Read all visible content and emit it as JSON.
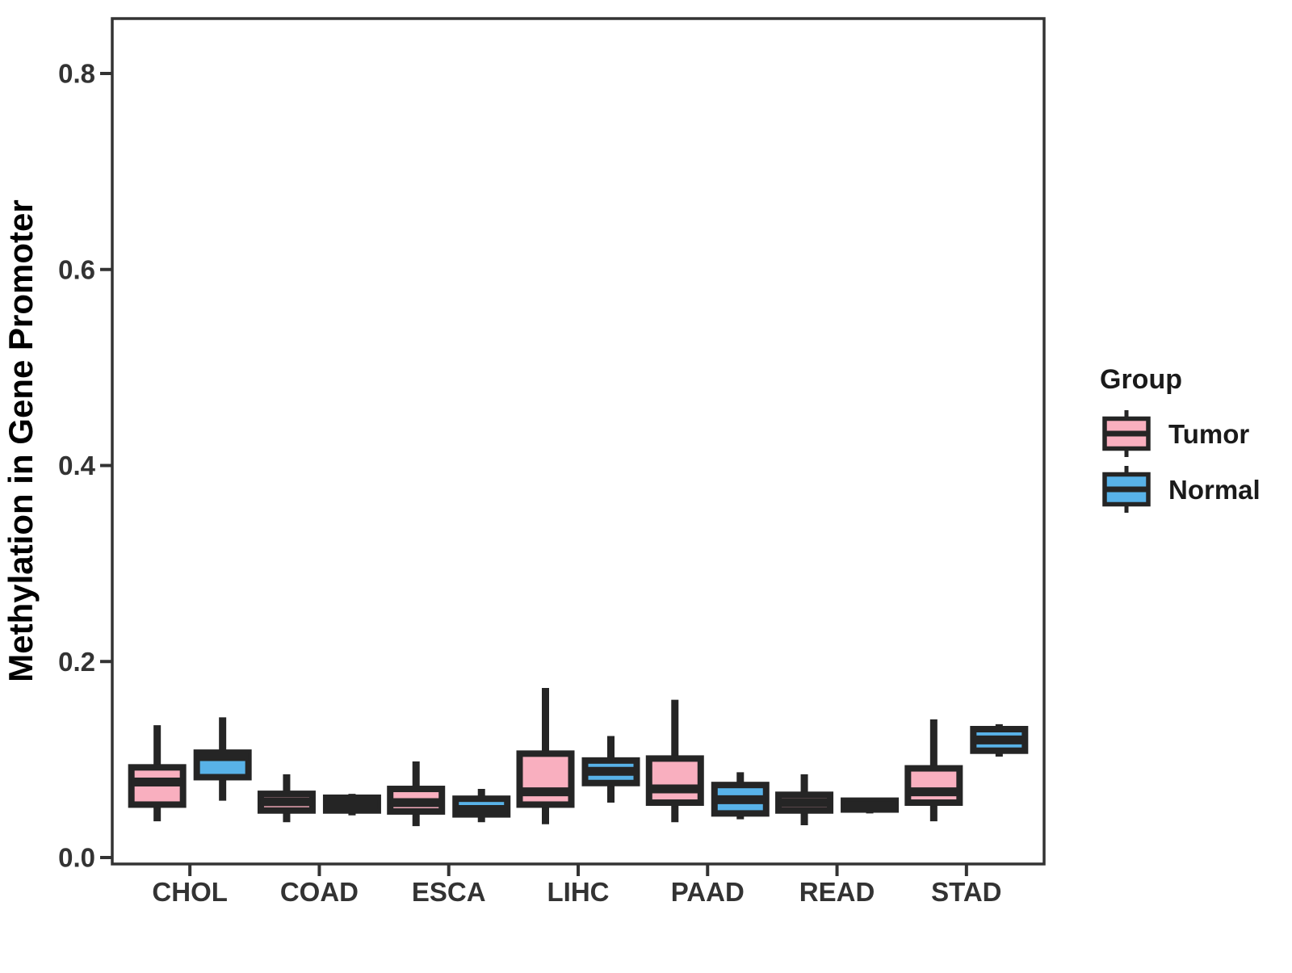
{
  "chart_data": {
    "type": "boxplot",
    "title": "",
    "xlabel": "",
    "ylabel": "Methylation in Gene Promoter",
    "categories": [
      "CHOL",
      "COAD",
      "ESCA",
      "LIHC",
      "PAAD",
      "READ",
      "STAD"
    ],
    "y_ticks": [
      "0.0",
      "0.2",
      "0.4",
      "0.6",
      "0.8"
    ],
    "y_tick_values": [
      0.0,
      0.2,
      0.4,
      0.6,
      0.8
    ],
    "ylim": [
      -0.007,
      0.857
    ],
    "grid": "off",
    "legend": {
      "title": "Group",
      "position": "right",
      "entries": [
        {
          "label": "Tumor",
          "color": "#F9AFBF"
        },
        {
          "label": "Normal",
          "color": "#58B2E8"
        }
      ]
    },
    "series": [
      {
        "name": "Tumor",
        "color": "#F9AFBF",
        "boxes": [
          {
            "category": "CHOL",
            "whisker_low": 0.037,
            "q1": 0.054,
            "median": 0.077,
            "q3": 0.092,
            "whisker_high": 0.135
          },
          {
            "category": "COAD",
            "whisker_low": 0.036,
            "q1": 0.048,
            "median": 0.057,
            "q3": 0.065,
            "whisker_high": 0.085
          },
          {
            "category": "ESCA",
            "whisker_low": 0.032,
            "q1": 0.047,
            "median": 0.056,
            "q3": 0.07,
            "whisker_high": 0.098
          },
          {
            "category": "LIHC",
            "whisker_low": 0.034,
            "q1": 0.054,
            "median": 0.067,
            "q3": 0.106,
            "whisker_high": 0.173
          },
          {
            "category": "PAAD",
            "whisker_low": 0.036,
            "q1": 0.056,
            "median": 0.07,
            "q3": 0.101,
            "whisker_high": 0.161
          },
          {
            "category": "READ",
            "whisker_low": 0.033,
            "q1": 0.048,
            "median": 0.056,
            "q3": 0.064,
            "whisker_high": 0.085
          },
          {
            "category": "STAD",
            "whisker_low": 0.037,
            "q1": 0.056,
            "median": 0.067,
            "q3": 0.091,
            "whisker_high": 0.141
          }
        ]
      },
      {
        "name": "Normal",
        "color": "#58B2E8",
        "boxes": [
          {
            "category": "CHOL",
            "whisker_low": 0.058,
            "q1": 0.082,
            "median": 0.103,
            "q3": 0.107,
            "whisker_high": 0.143
          },
          {
            "category": "COAD",
            "whisker_low": 0.043,
            "q1": 0.048,
            "median": 0.054,
            "q3": 0.061,
            "whisker_high": 0.065
          },
          {
            "category": "ESCA",
            "whisker_low": 0.036,
            "q1": 0.044,
            "median": 0.049,
            "q3": 0.06,
            "whisker_high": 0.07
          },
          {
            "category": "LIHC",
            "whisker_low": 0.056,
            "q1": 0.076,
            "median": 0.088,
            "q3": 0.099,
            "whisker_high": 0.124
          },
          {
            "category": "PAAD",
            "whisker_low": 0.039,
            "q1": 0.045,
            "median": 0.059,
            "q3": 0.074,
            "whisker_high": 0.087
          },
          {
            "category": "READ",
            "whisker_low": 0.045,
            "q1": 0.049,
            "median": 0.053,
            "q3": 0.058,
            "whisker_high": 0.059
          },
          {
            "category": "STAD",
            "whisker_low": 0.103,
            "q1": 0.109,
            "median": 0.12,
            "q3": 0.131,
            "whisker_high": 0.136
          }
        ]
      }
    ],
    "colors": {
      "tumor_fill": "#F9AFBF",
      "normal_fill": "#58B2E8",
      "box_border": "#252525",
      "axis_text": "#333333",
      "axis_title": "#000000",
      "panel_border": "#333333",
      "background": "#ffffff"
    }
  }
}
